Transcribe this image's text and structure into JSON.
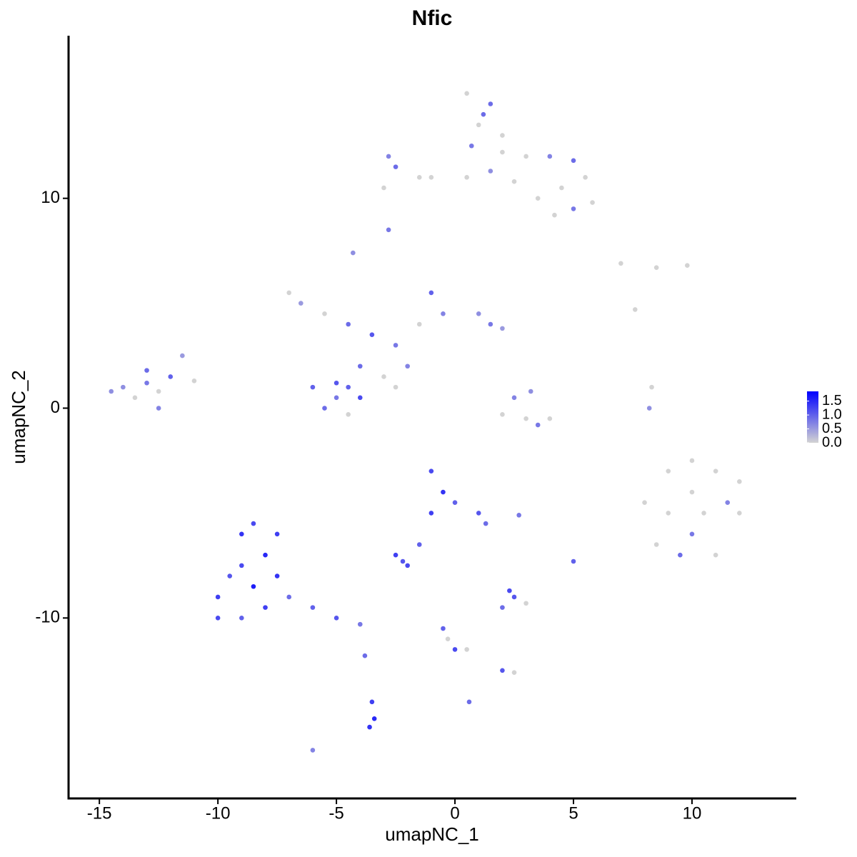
{
  "chart_data": {
    "type": "scatter",
    "title": "Nfic",
    "x_label": "umapNC_1",
    "y_label": "umapNC_2",
    "x": [
      0.5,
      1.5,
      1,
      2,
      0.7,
      3,
      4,
      5,
      5.5,
      4.5,
      5,
      5.8,
      -2.5,
      -1.5,
      -2.8,
      -1,
      0.5,
      1.5,
      2.5,
      3.5,
      4.2,
      -3,
      -2.8,
      2,
      1.2,
      -7,
      -6.5,
      -5.5,
      -4.5,
      -3.5,
      -2.5,
      -1.5,
      -1,
      -0.5,
      1,
      2,
      1.5,
      -4,
      -5,
      -6,
      -5.5,
      -4.5,
      -4,
      -4.5,
      -5,
      -3,
      -2,
      -4.3,
      -2.5,
      -14,
      -13,
      -12.5,
      -12,
      -11.5,
      -13.5,
      -12.5,
      -11,
      -14.5,
      -13,
      2.5,
      3,
      3.5,
      2,
      4,
      3.2,
      9,
      10,
      11,
      12,
      10,
      11,
      9.5,
      8.5,
      10.5,
      12,
      9,
      11.5,
      10,
      8,
      8.2,
      8.3,
      -10,
      -9.5,
      -9,
      -8.5,
      -8,
      -8,
      -9,
      -10,
      -7.5,
      -7,
      -6,
      -5,
      -4,
      -8.5,
      -9,
      -7.5,
      -3.8,
      -1,
      -0.5,
      0,
      1,
      -1,
      1.3,
      -1.5,
      -2,
      -2.5,
      -2.2,
      2,
      2.5,
      3,
      2.3,
      -0.5,
      -0.3,
      0,
      0.5,
      2,
      2.5,
      -3.5,
      -3.4,
      -3.6,
      -6,
      0.6,
      5,
      2.7,
      7,
      8.5,
      9.8,
      7.6
    ],
    "y": [
      15,
      14.5,
      13.5,
      13,
      12.5,
      12,
      12,
      11.8,
      11,
      10.5,
      9.5,
      9.8,
      11.5,
      11,
      12,
      11,
      11,
      11.3,
      10.8,
      10,
      9.2,
      10.5,
      8.5,
      12.2,
      14,
      5.5,
      5,
      4.5,
      4,
      3.5,
      3,
      4,
      5.5,
      4.5,
      4.5,
      3.8,
      4,
      2,
      1.2,
      1,
      0,
      -0.3,
      0.5,
      1,
      0.5,
      1.5,
      2,
      7.4,
      1,
      1,
      1.2,
      0.8,
      1.5,
      2.5,
      0.5,
      0,
      1.3,
      0.8,
      1.8,
      0.5,
      -0.5,
      -0.8,
      -0.3,
      -0.5,
      0.8,
      -5,
      -4,
      -3,
      -3.5,
      -6,
      -7,
      -7,
      -6.5,
      -5,
      -5,
      -3,
      -4.5,
      -2.5,
      -4.5,
      0,
      1,
      -9,
      -8,
      -6,
      -5.5,
      -7,
      -9.5,
      -10,
      -10,
      -8,
      -9,
      -9.5,
      -10,
      -10.3,
      -8.5,
      -7.5,
      -6,
      -11.8,
      -3,
      -4,
      -4.5,
      -5,
      -5,
      -5.5,
      -6.5,
      -7.5,
      -7,
      -7.3,
      -9.5,
      -9,
      -9.3,
      -8.7,
      -10.5,
      -11,
      -11.5,
      -11.5,
      -12.5,
      -12.6,
      -14,
      -14.8,
      -15.2,
      -16.3,
      -14,
      -7.3,
      -5.1,
      6.9,
      6.7,
      6.8,
      4.7
    ],
    "values": [
      0,
      0.9,
      0,
      0,
      0.8,
      0,
      0.7,
      0.9,
      0,
      0,
      0.8,
      0,
      0.9,
      0,
      0.7,
      0,
      0,
      0.6,
      0,
      0,
      0,
      0,
      0.8,
      0,
      0.9,
      0,
      0.5,
      0,
      0.9,
      1.1,
      0.8,
      0,
      1,
      0.7,
      0.6,
      0.5,
      0.8,
      0.9,
      1.1,
      1,
      0.9,
      0,
      1.2,
      1,
      0.8,
      0,
      0.7,
      0.6,
      0,
      0.6,
      0.8,
      0,
      1,
      0.5,
      0,
      0.7,
      0,
      0.6,
      0.9,
      0.7,
      0,
      0.8,
      0,
      0,
      0.6,
      0,
      0,
      0,
      0,
      0.8,
      0,
      0.9,
      0,
      0,
      0,
      0,
      0.7,
      0,
      0,
      0.6,
      0,
      1.3,
      1.1,
      1.4,
      1.2,
      1.5,
      1.3,
      1,
      1.2,
      1.4,
      0.9,
      1,
      1.1,
      0.8,
      1.6,
      1.2,
      1.3,
      0.9,
      1.2,
      1.4,
      1,
      1.1,
      1.3,
      0.9,
      1,
      1.2,
      1.3,
      1.1,
      0.9,
      1.1,
      0,
      1.2,
      1,
      0,
      1.2,
      0,
      1.1,
      0,
      1.3,
      1.5,
      1.4,
      0.7,
      0.9,
      1,
      0.8,
      0,
      0,
      0,
      0
    ],
    "xlim": [
      -16.3,
      14.4
    ],
    "ylim": [
      -18.6,
      17.75
    ],
    "xticks": [
      -15,
      -10,
      -5,
      0,
      5,
      10
    ],
    "yticks": [
      -10,
      0,
      10
    ],
    "color_low": "#d3d3d3",
    "color_high": "#0000ff",
    "colorbar_lim": [
      0,
      1.85
    ],
    "colorbar_ticks": [
      {
        "value": 0,
        "label": "0.0"
      },
      0.5,
      {
        "value": 1,
        "label": "1.0"
      },
      1.5
    ]
  }
}
